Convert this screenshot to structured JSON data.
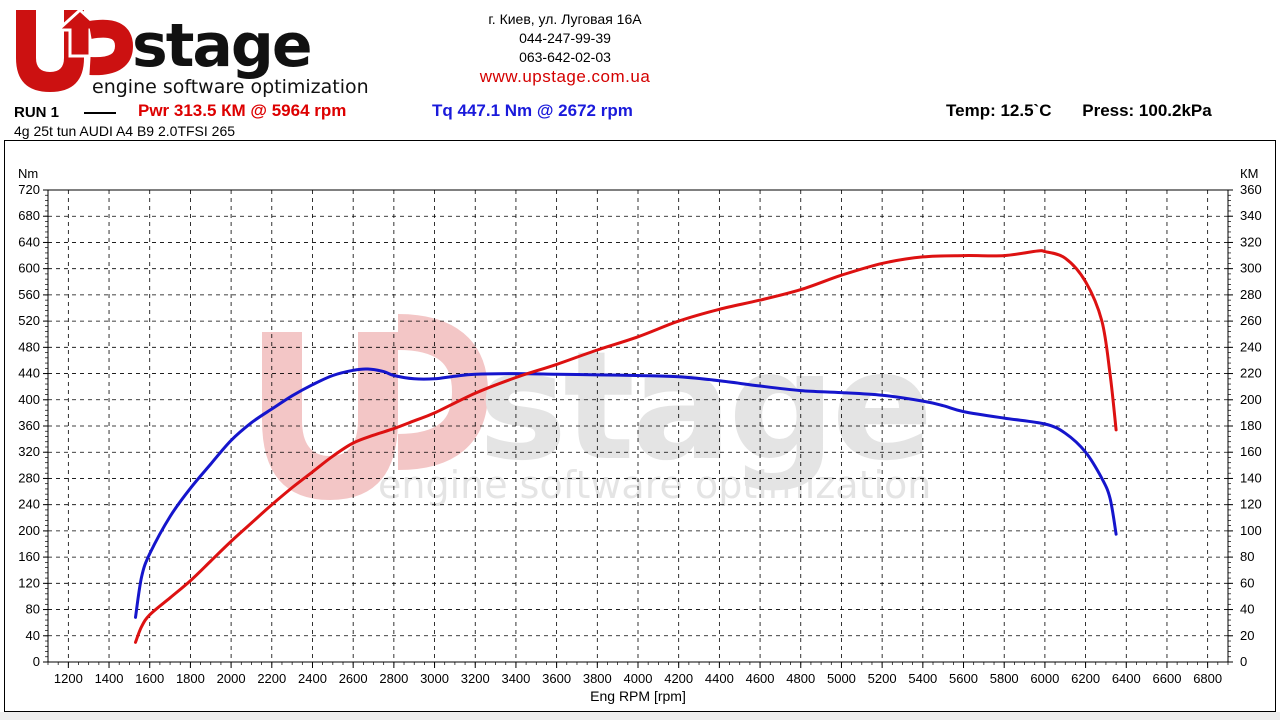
{
  "header": {
    "brand_top": "Upstage",
    "brand_sub": "engine software optimization",
    "address": "г. Киев, ул. Луговая 16А",
    "phone1": "044-247-99-39",
    "phone2": "063-642-02-03",
    "url": "www.upstage.com.ua"
  },
  "run": {
    "label": "RUN 1",
    "pwr": "Pwr  313.5 КМ @ 5964 rpm",
    "tq": "Tq 447.1 Nm @ 2672 rpm",
    "temp": "Temp: 12.5`C",
    "press": "Press: 100.2kPa",
    "vehicle": "4g 25t tun AUDI A4 B9 2.0TFSI 265"
  },
  "colors": {
    "power": "#dd1111",
    "torque": "#1515cc",
    "brand_red": "#cc0000"
  },
  "chart_data": {
    "type": "line",
    "xlabel": "Eng RPM [rpm]",
    "ylabel_left": "Nm",
    "ylabel_right": "КМ",
    "xlim": [
      1100,
      6900
    ],
    "ylim_left": [
      0,
      720
    ],
    "ylim_right": [
      0,
      360
    ],
    "x_ticks": [
      1200,
      1400,
      1600,
      1800,
      2000,
      2200,
      2400,
      2600,
      2800,
      3000,
      3200,
      3400,
      3600,
      3800,
      4000,
      4200,
      4400,
      4600,
      4800,
      5000,
      5200,
      5400,
      5600,
      5800,
      6000,
      6200,
      6400,
      6600,
      6800
    ],
    "y_ticks_left": [
      0,
      40,
      80,
      120,
      160,
      200,
      240,
      280,
      320,
      360,
      400,
      440,
      480,
      520,
      560,
      600,
      640,
      680,
      720
    ],
    "y_ticks_right": [
      0,
      20,
      40,
      60,
      80,
      100,
      120,
      140,
      160,
      180,
      200,
      220,
      240,
      260,
      280,
      300,
      320,
      340,
      360
    ],
    "grid": true,
    "series": [
      {
        "name": "Tq",
        "axis": "left",
        "color": "#1515cc",
        "x": [
          1530,
          1560,
          1600,
          1700,
          1800,
          1900,
          2000,
          2100,
          2200,
          2300,
          2400,
          2500,
          2600,
          2672,
          2750,
          2800,
          2900,
          3000,
          3100,
          3200,
          3400,
          3600,
          3800,
          4000,
          4200,
          4400,
          4600,
          4800,
          5000,
          5200,
          5400,
          5500,
          5600,
          5800,
          6000,
          6100,
          6200,
          6280,
          6320,
          6350
        ],
        "values": [
          68,
          130,
          165,
          222,
          265,
          302,
          338,
          365,
          386,
          406,
          423,
          437,
          445,
          447,
          443,
          437,
          432,
          432,
          436,
          439,
          440,
          439,
          438,
          437,
          435,
          429,
          421,
          414,
          411,
          407,
          398,
          391,
          382,
          372,
          363,
          349,
          320,
          280,
          250,
          195
        ]
      },
      {
        "name": "Pwr",
        "axis": "right",
        "color": "#dd1111",
        "x": [
          1530,
          1560,
          1600,
          1700,
          1800,
          1900,
          2000,
          2100,
          2200,
          2300,
          2400,
          2500,
          2600,
          2700,
          2800,
          2900,
          3000,
          3200,
          3400,
          3600,
          3800,
          4000,
          4200,
          4400,
          4600,
          4800,
          5000,
          5200,
          5400,
          5600,
          5800,
          5964,
          6000,
          6100,
          6200,
          6280,
          6320,
          6350
        ],
        "values": [
          15,
          27,
          36,
          49,
          62,
          77,
          92,
          106,
          120,
          133,
          145,
          157,
          167,
          173,
          178,
          184,
          190,
          205,
          217,
          227,
          238,
          248,
          260,
          269,
          276,
          284,
          295,
          304,
          309,
          310,
          310,
          313.5,
          313,
          308,
          290,
          260,
          220,
          177
        ]
      }
    ]
  }
}
